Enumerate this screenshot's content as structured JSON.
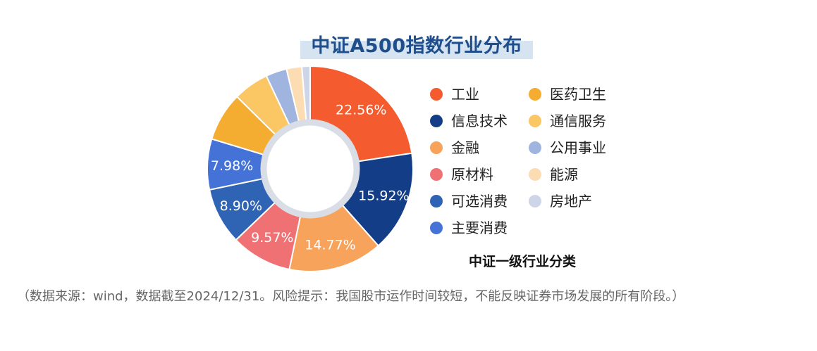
{
  "page": {
    "title": "中证A500指数行业分布",
    "legend_title": "中证一级行业分类",
    "note": "（数据来源：wind，数据截至2024/12/31。风险提示：我国股市运作时间较短，不能反映证券市场发展的所有阶段。）"
  },
  "chart_data": {
    "type": "pie",
    "title": "中证A500指数行业分布",
    "legend_title": "中证一级行业分类",
    "legend_placement": "right",
    "donut": true,
    "slices": [
      {
        "label": "工业",
        "value": 22.56,
        "value_label": "22.56%",
        "color": "#f45b2e"
      },
      {
        "label": "信息技术",
        "value": 15.92,
        "value_label": "15.92%",
        "color": "#143d87"
      },
      {
        "label": "金融",
        "value": 14.77,
        "value_label": "14.77%",
        "color": "#f7a35c"
      },
      {
        "label": "原材料",
        "value": 9.57,
        "value_label": "9.57%",
        "color": "#f07174"
      },
      {
        "label": "可选消费",
        "value": 8.9,
        "value_label": "8.90%",
        "color": "#2f64b5"
      },
      {
        "label": "主要消费",
        "value": 7.98,
        "value_label": "7.98%",
        "color": "#4472d6"
      },
      {
        "label": "医药卫生",
        "value": 7.7,
        "value_label": "",
        "color": "#f5ad31"
      },
      {
        "label": "通信服务",
        "value": 5.6,
        "value_label": "",
        "color": "#fbc764"
      },
      {
        "label": "公用事业",
        "value": 3.3,
        "value_label": "",
        "color": "#9fb5e0"
      },
      {
        "label": "能源",
        "value": 2.4,
        "value_label": "",
        "color": "#fcdcb3"
      },
      {
        "label": "房地产",
        "value": 1.3,
        "value_label": "",
        "color": "#cfd5e8"
      }
    ],
    "legend_order": [
      "工业",
      "医药卫生",
      "信息技术",
      "通信服务",
      "金融",
      "公用事业",
      "原材料",
      "能源",
      "可选消费",
      "房地产",
      "主要消费"
    ]
  }
}
